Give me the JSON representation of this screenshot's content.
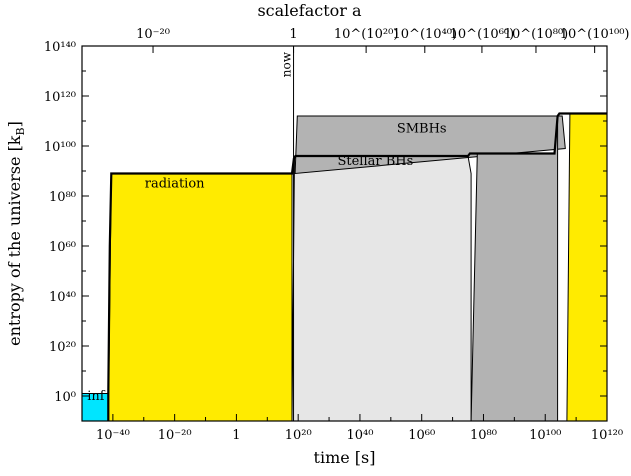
{
  "chart_data": {
    "type": "area",
    "title": "",
    "xlabel": "time [s]",
    "ylabel": "entropy of the universe [k",
    "ylabel_subscript": "B",
    "ylabel_suffix": "]",
    "top_xlabel": "scalefactor a",
    "x_scale": "log10",
    "y_scale": "log10",
    "xlim_log10": [
      -50,
      120
    ],
    "ylim_log10": [
      -10,
      140
    ],
    "grid": false,
    "x_ticks": [
      {
        "exp": -40,
        "label": "10⁻⁴⁰"
      },
      {
        "exp": -20,
        "label": "10⁻²⁰"
      },
      {
        "exp": 0,
        "label": "1"
      },
      {
        "exp": 20,
        "label": "10²⁰"
      },
      {
        "exp": 40,
        "label": "10⁴⁰"
      },
      {
        "exp": 60,
        "label": "10⁶⁰"
      },
      {
        "exp": 80,
        "label": "10⁸⁰"
      },
      {
        "exp": 100,
        "label": "10¹⁰⁰"
      },
      {
        "exp": 120,
        "label": "10¹²⁰"
      }
    ],
    "y_ticks": [
      {
        "exp": 0,
        "label": "10⁰"
      },
      {
        "exp": 20,
        "label": "10²⁰"
      },
      {
        "exp": 40,
        "label": "10⁴⁰"
      },
      {
        "exp": 60,
        "label": "10⁶⁰"
      },
      {
        "exp": 80,
        "label": "10⁸⁰"
      },
      {
        "exp": 100,
        "label": "10¹⁰⁰"
      },
      {
        "exp": 120,
        "label": "10¹²⁰"
      },
      {
        "exp": 140,
        "label": "10¹⁴⁰"
      }
    ],
    "top_ticks": [
      {
        "at_time_exp": -27,
        "label": "10⁻²⁰"
      },
      {
        "at_time_exp": 18.5,
        "label": "1"
      },
      {
        "at_time_exp": 42,
        "label": "10^(10²⁰)"
      },
      {
        "at_time_exp": 61,
        "label": "10^(10⁴⁰)"
      },
      {
        "at_time_exp": 79.5,
        "label": "10^(10⁶⁰)"
      },
      {
        "at_time_exp": 97,
        "label": "10^(10⁸⁰)"
      },
      {
        "at_time_exp": 116,
        "label": "10^(10¹⁰⁰)"
      }
    ],
    "now_marker": {
      "time_exp": 18.5,
      "label": "now"
    },
    "series": [
      {
        "name": "inf",
        "color": "#00e5ff",
        "x_log10": [
          -50,
          -41.5
        ],
        "y_log10": [
          1,
          1
        ]
      },
      {
        "name": "radiation",
        "color": "#ffeb00",
        "x_log10": [
          -41.5,
          -40.5,
          18
        ],
        "y_log10": [
          -10,
          89,
          89
        ]
      },
      {
        "name": "Stellar BHs",
        "color": "#e6e6e6",
        "x_log10": [
          18,
          18.8,
          75,
          76
        ],
        "y_log10": [
          -10,
          96,
          96,
          89
        ]
      },
      {
        "name": "SMBHs",
        "color": "#b3b3b3",
        "x_log10": [
          19,
          19.7,
          105.5,
          106.5
        ],
        "y_log10": [
          89,
          112,
          112,
          99
        ]
      },
      {
        "name": "",
        "color": "#b3b3b3",
        "x_log10": [
          76,
          78,
          103,
          104
        ],
        "y_log10": [
          -10,
          97,
          97,
          112
        ]
      },
      {
        "name": "",
        "color": "#ffeb00",
        "x_log10": [
          107,
          108,
          120
        ],
        "y_log10": [
          -10,
          113,
          113
        ]
      }
    ]
  }
}
